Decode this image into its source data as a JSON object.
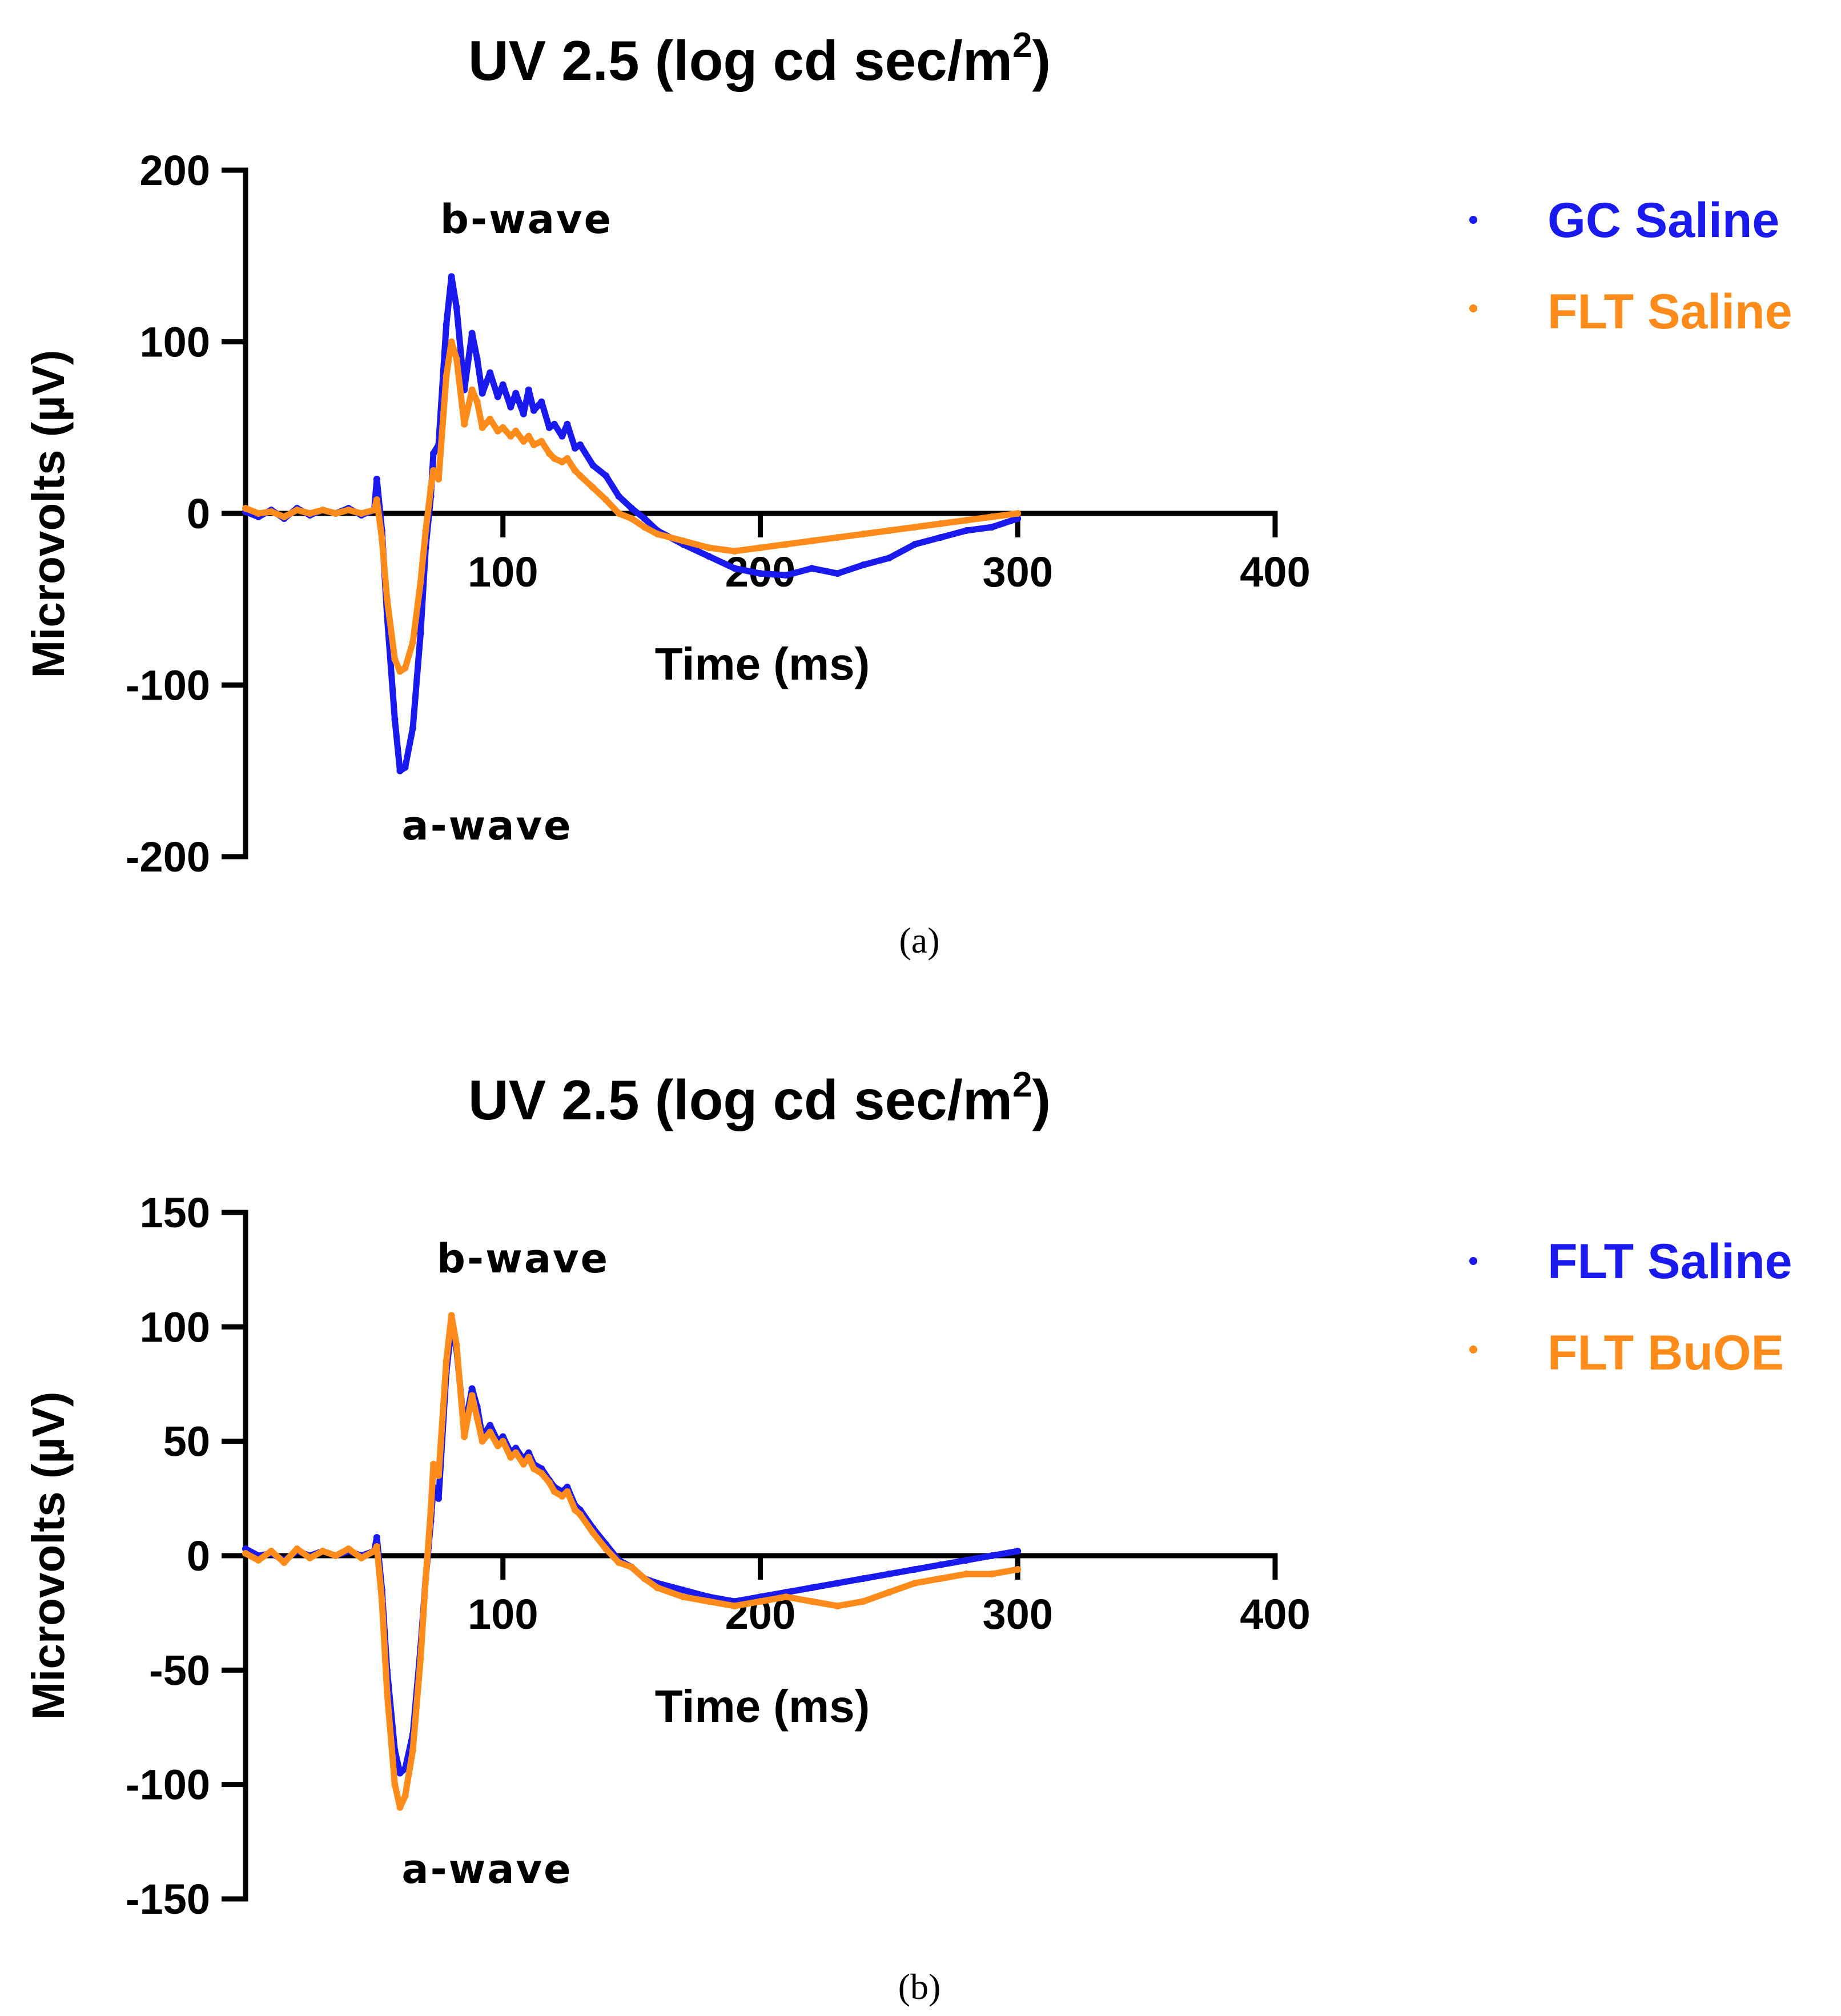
{
  "chart_data": [
    {
      "id": "a",
      "type": "line",
      "title": "UV 2.5 (log cd sec/m",
      "title_superscript": "2",
      "title_close": ")",
      "xlabel": "Time (ms)",
      "ylabel": "Microvolts (µV)",
      "xlim": [
        0,
        400
      ],
      "ylim": [
        -200,
        200
      ],
      "xticks": [
        100,
        200,
        300,
        400
      ],
      "yticks": [
        200,
        100,
        0,
        -100,
        -200
      ],
      "annotations": {
        "b_wave": "b-wave",
        "a_wave": "a-wave"
      },
      "panel_label": "(a)",
      "series": [
        {
          "name": "GC Saline",
          "color": "#1a1aee",
          "x": [
            0,
            5,
            10,
            15,
            20,
            25,
            30,
            35,
            40,
            45,
            50,
            51,
            53,
            55,
            58,
            60,
            62,
            65,
            68,
            70,
            72,
            73,
            75,
            78,
            80,
            82,
            85,
            88,
            90,
            92,
            95,
            98,
            100,
            103,
            105,
            108,
            110,
            112,
            115,
            118,
            120,
            123,
            125,
            128,
            130,
            135,
            140,
            145,
            150,
            155,
            160,
            170,
            180,
            190,
            200,
            210,
            220,
            230,
            240,
            250,
            260,
            270,
            280,
            290,
            300
          ],
          "y": [
            1,
            -2,
            2,
            -3,
            3,
            -1,
            2,
            0,
            3,
            -1,
            2,
            20,
            -10,
            -60,
            -120,
            -150,
            -148,
            -125,
            -70,
            -20,
            10,
            35,
            40,
            110,
            138,
            120,
            72,
            105,
            90,
            70,
            82,
            68,
            75,
            62,
            70,
            58,
            72,
            60,
            65,
            50,
            52,
            45,
            52,
            38,
            40,
            28,
            22,
            10,
            3,
            -3,
            -10,
            -18,
            -25,
            -32,
            -35,
            -36,
            -32,
            -35,
            -30,
            -26,
            -18,
            -14,
            -10,
            -8,
            -3
          ]
        },
        {
          "name": "FLT Saline",
          "color": "#ff8c1a",
          "x": [
            0,
            5,
            10,
            15,
            20,
            25,
            30,
            35,
            40,
            45,
            50,
            51,
            53,
            55,
            58,
            60,
            62,
            65,
            68,
            70,
            72,
            73,
            75,
            78,
            80,
            82,
            85,
            88,
            90,
            92,
            95,
            98,
            100,
            103,
            105,
            108,
            110,
            112,
            115,
            118,
            120,
            123,
            125,
            128,
            130,
            135,
            140,
            145,
            150,
            155,
            160,
            170,
            180,
            190,
            200,
            210,
            220,
            230,
            240,
            250,
            260,
            270,
            280,
            290,
            300
          ],
          "y": [
            3,
            0,
            1,
            -2,
            2,
            0,
            2,
            0,
            2,
            0,
            2,
            8,
            -15,
            -50,
            -85,
            -92,
            -90,
            -75,
            -40,
            -10,
            15,
            25,
            20,
            80,
            100,
            90,
            52,
            72,
            65,
            50,
            55,
            48,
            50,
            45,
            48,
            42,
            45,
            40,
            42,
            35,
            32,
            30,
            32,
            25,
            22,
            15,
            8,
            0,
            -3,
            -8,
            -12,
            -16,
            -20,
            -22,
            -20,
            -18,
            -16,
            -14,
            -12,
            -10,
            -8,
            -6,
            -4,
            -2,
            0
          ]
        }
      ]
    },
    {
      "id": "b",
      "type": "line",
      "title": "UV 2.5 (log cd sec/m",
      "title_superscript": "2",
      "title_close": ")",
      "xlabel": "Time (ms)",
      "ylabel": "Microvolts (µV)",
      "xlim": [
        0,
        400
      ],
      "ylim": [
        -150,
        150
      ],
      "xticks": [
        100,
        200,
        300,
        400
      ],
      "yticks": [
        150,
        100,
        50,
        0,
        -50,
        -100,
        -150
      ],
      "annotations": {
        "b_wave": "b-wave",
        "a_wave": "a-wave"
      },
      "panel_label": "(b)",
      "series": [
        {
          "name": "FLT Saline",
          "color": "#1a1aee",
          "x": [
            0,
            5,
            10,
            15,
            20,
            25,
            30,
            35,
            40,
            45,
            50,
            51,
            53,
            55,
            58,
            60,
            62,
            65,
            68,
            70,
            72,
            73,
            75,
            78,
            80,
            82,
            85,
            88,
            90,
            92,
            95,
            98,
            100,
            103,
            105,
            108,
            110,
            112,
            115,
            118,
            120,
            123,
            125,
            128,
            130,
            135,
            140,
            145,
            150,
            155,
            160,
            170,
            180,
            190,
            200,
            210,
            220,
            230,
            240,
            250,
            260,
            270,
            280,
            290,
            300
          ],
          "y": [
            3,
            0,
            1,
            -2,
            2,
            0,
            2,
            0,
            2,
            0,
            2,
            8,
            -15,
            -50,
            -85,
            -95,
            -93,
            -78,
            -40,
            -10,
            15,
            30,
            25,
            80,
            100,
            90,
            55,
            73,
            65,
            52,
            57,
            50,
            52,
            45,
            47,
            42,
            45,
            40,
            38,
            33,
            30,
            28,
            30,
            22,
            20,
            12,
            5,
            -2,
            -5,
            -10,
            -12,
            -15,
            -18,
            -20,
            -18,
            -16,
            -14,
            -12,
            -10,
            -8,
            -6,
            -4,
            -2,
            0,
            2
          ]
        },
        {
          "name": "FLT BuOE",
          "color": "#ff8c1a",
          "x": [
            0,
            5,
            10,
            15,
            20,
            25,
            30,
            35,
            40,
            45,
            50,
            51,
            53,
            55,
            58,
            60,
            62,
            65,
            68,
            70,
            72,
            73,
            75,
            78,
            80,
            82,
            85,
            88,
            90,
            92,
            95,
            98,
            100,
            103,
            105,
            108,
            110,
            112,
            115,
            118,
            120,
            123,
            125,
            128,
            130,
            135,
            140,
            145,
            150,
            155,
            160,
            170,
            180,
            190,
            200,
            210,
            220,
            230,
            240,
            250,
            260,
            270,
            280,
            290,
            300
          ],
          "y": [
            1,
            -2,
            2,
            -3,
            3,
            -1,
            2,
            0,
            3,
            -1,
            2,
            4,
            -20,
            -60,
            -100,
            -110,
            -105,
            -85,
            -45,
            -10,
            20,
            40,
            35,
            85,
            105,
            92,
            52,
            70,
            60,
            50,
            54,
            48,
            50,
            43,
            45,
            40,
            43,
            38,
            36,
            32,
            28,
            26,
            28,
            20,
            18,
            10,
            3,
            -3,
            -5,
            -10,
            -14,
            -18,
            -20,
            -22,
            -20,
            -18,
            -20,
            -22,
            -20,
            -16,
            -12,
            -10,
            -8,
            -8,
            -6
          ]
        }
      ]
    }
  ]
}
